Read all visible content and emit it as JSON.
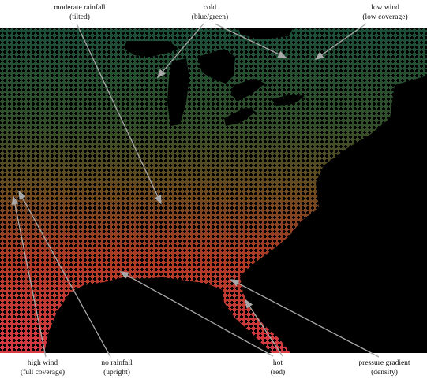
{
  "figure": {
    "background": "#ffffff",
    "map_background": "#000000",
    "glyph_colors": {
      "cold": "#1f5a3a",
      "mid": "#5a5a1e",
      "hot": "#c8362c",
      "hottest": "#dd3a44"
    },
    "arrow_color": "#a8a8a8"
  },
  "annotations": [
    {
      "id": "moderate-rainfall",
      "line1": "moderate rainfall",
      "line2": "(tilted)"
    },
    {
      "id": "cold",
      "line1": "cold",
      "line2": "(blue/green)"
    },
    {
      "id": "low-wind",
      "line1": "low wind",
      "line2": "(low coverage)"
    },
    {
      "id": "high-wind",
      "line1": "high wind",
      "line2": "(full coverage)"
    },
    {
      "id": "no-rainfall",
      "line1": "no rainfall",
      "line2": "(upright)"
    },
    {
      "id": "hot",
      "line1": "hot",
      "line2": "(red)"
    },
    {
      "id": "pressure-gradient",
      "line1": "pressure gradient",
      "line2": "(density)"
    }
  ]
}
